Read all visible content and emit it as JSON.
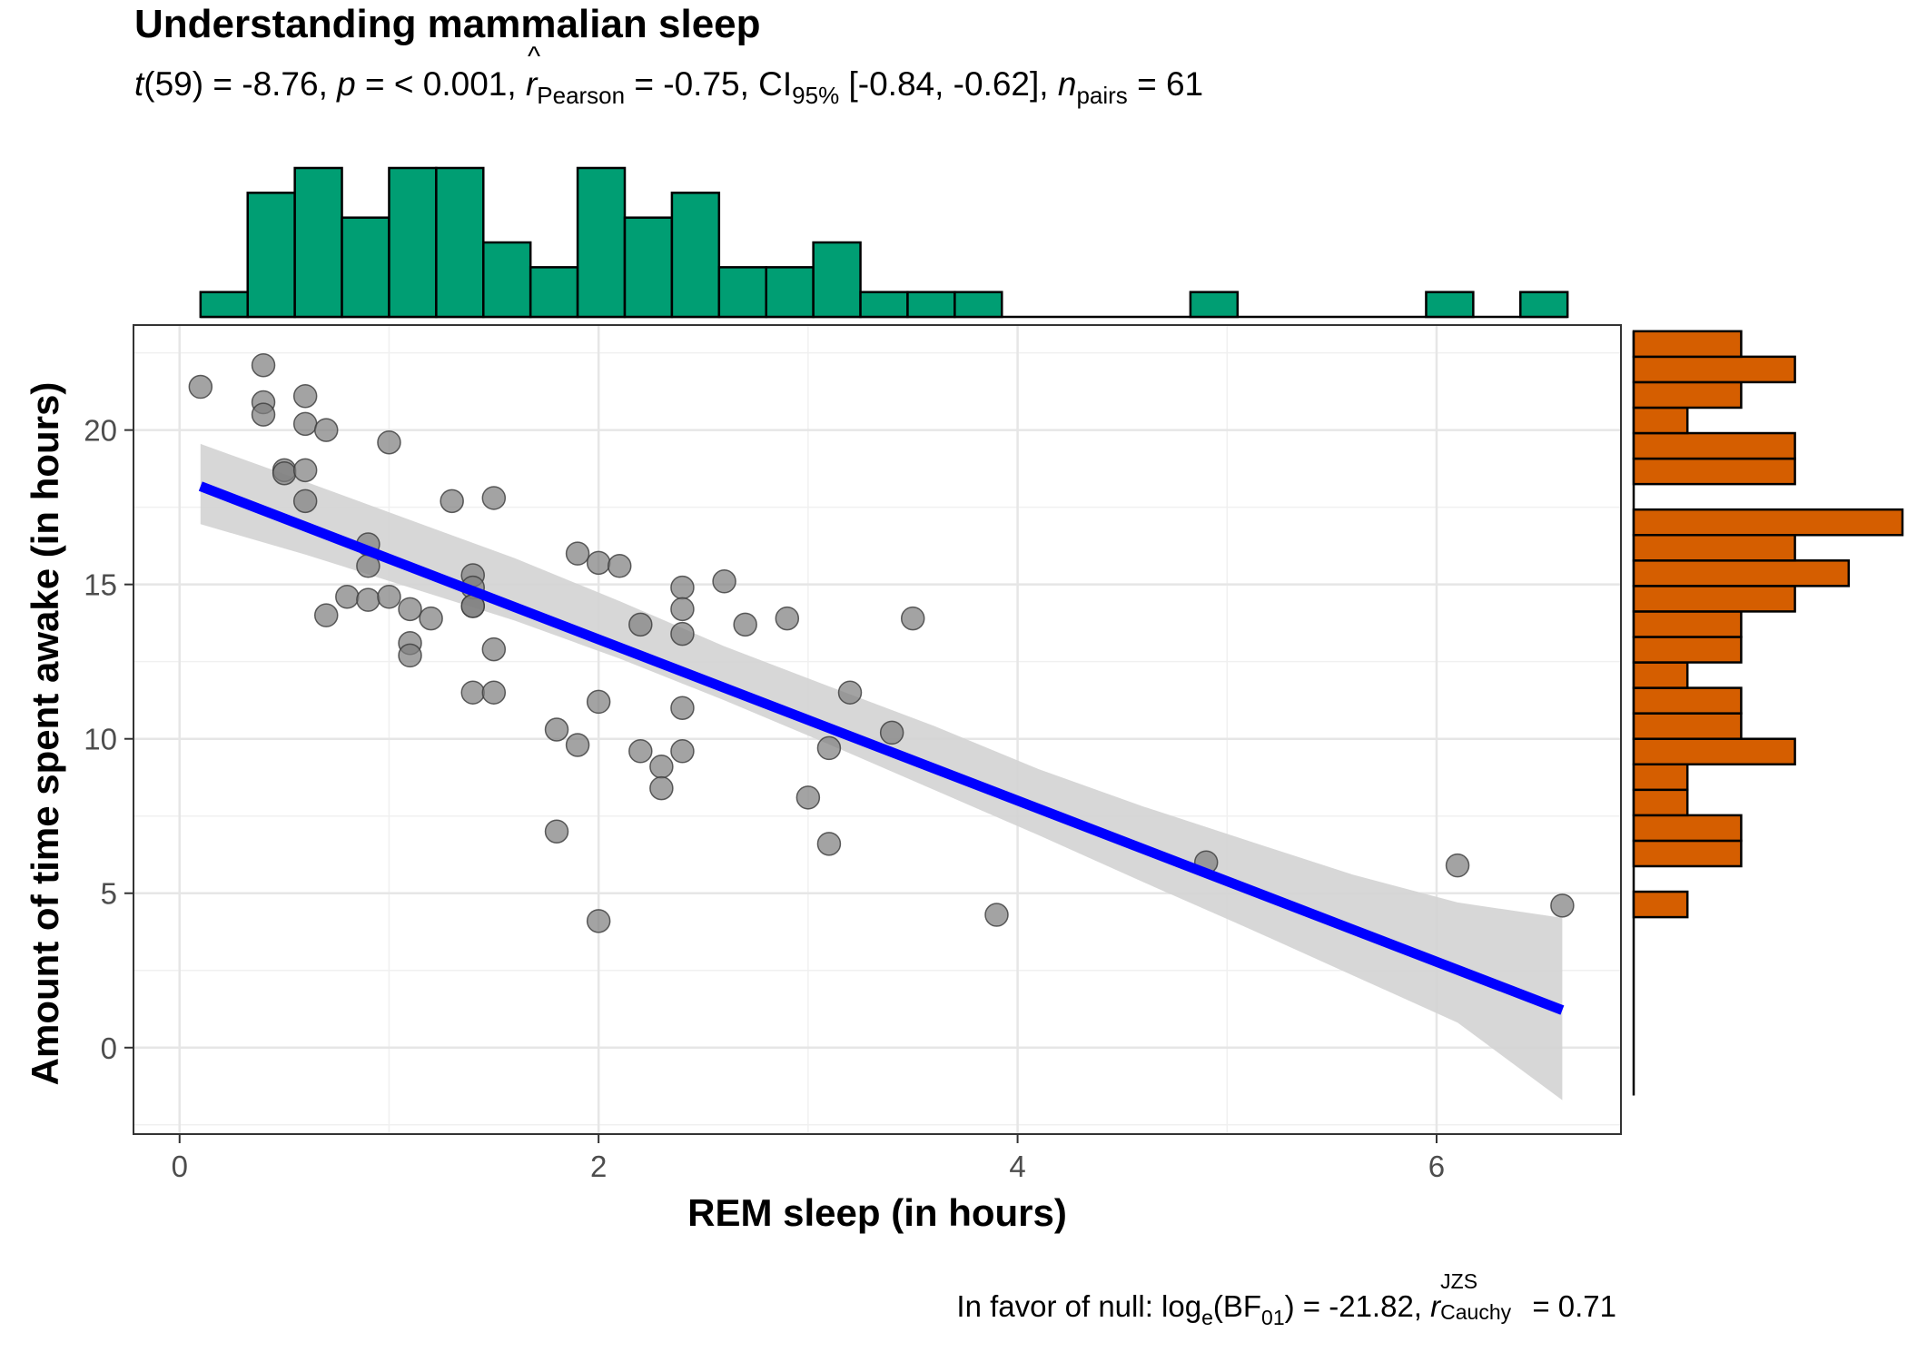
{
  "chart_data": {
    "type": "scatter",
    "title": "Understanding mammalian sleep",
    "subtitle": {
      "t_label": "t",
      "df": "(59) = -8.76, ",
      "p_label": "p",
      "p_text": " = < 0.001, ",
      "r_label": "r",
      "r_sub": "Pearson",
      "r_text": " = -0.75, CI",
      "ci_sub": "95%",
      "ci_text": " [-0.84, -0.62], ",
      "n_label": "n",
      "n_sub": "pairs",
      "n_text": " = 61"
    },
    "caption": {
      "prefix": "In favor of null: log",
      "log_sub": "e",
      "bf_text": "(BF",
      "bf_sub": "01",
      "mid": ") = -21.82, ",
      "r_label": "r",
      "r_sup": "JZS",
      "r_sub": "Cauchy",
      "suffix": " = 0.71"
    },
    "xlabel": "REM sleep (in hours)",
    "ylabel": "Amount of time spent awake (in hours)",
    "xlim": [
      -0.22,
      6.88
    ],
    "ylim": [
      -2.8,
      23.4
    ],
    "xticks": [
      0,
      2,
      4,
      6
    ],
    "yticks": [
      0,
      5,
      10,
      15,
      20
    ],
    "x": [
      0.1,
      0.4,
      0.4,
      0.4,
      0.5,
      0.5,
      0.6,
      0.6,
      0.6,
      0.6,
      0.7,
      0.7,
      0.8,
      0.9,
      0.9,
      0.9,
      1.0,
      1.0,
      1.1,
      1.1,
      1.1,
      1.2,
      1.3,
      1.4,
      1.4,
      1.4,
      1.4,
      1.4,
      1.5,
      1.5,
      1.5,
      1.8,
      1.8,
      1.9,
      1.9,
      2.0,
      2.0,
      2.0,
      2.1,
      2.2,
      2.2,
      2.3,
      2.3,
      2.4,
      2.4,
      2.4,
      2.4,
      2.4,
      2.6,
      2.7,
      2.9,
      3.0,
      3.1,
      3.1,
      3.2,
      3.4,
      3.5,
      3.9,
      4.9,
      6.1,
      6.6
    ],
    "y": [
      21.4,
      22.1,
      20.9,
      20.5,
      18.7,
      18.6,
      21.1,
      20.2,
      18.7,
      17.7,
      20.0,
      14.0,
      14.6,
      16.3,
      15.6,
      14.5,
      19.6,
      14.6,
      14.2,
      13.1,
      12.7,
      13.9,
      17.7,
      15.3,
      14.9,
      14.3,
      14.3,
      11.5,
      17.8,
      12.9,
      11.5,
      10.3,
      7.0,
      16.0,
      9.8,
      15.7,
      11.2,
      4.1,
      15.6,
      13.7,
      9.6,
      9.1,
      8.4,
      14.9,
      14.2,
      13.4,
      11.0,
      9.6,
      15.1,
      13.7,
      13.9,
      8.1,
      9.7,
      6.6,
      11.5,
      10.2,
      13.9,
      4.3,
      6.0,
      5.9,
      4.6
    ],
    "regression": {
      "intercept": 18.44,
      "slope": -2.61,
      "x_range": [
        0.1,
        6.6
      ],
      "color": "#0000ff"
    },
    "confidence_band": {
      "x": [
        0.1,
        0.6,
        1.1,
        1.6,
        2.1,
        2.6,
        3.1,
        3.6,
        4.1,
        4.6,
        5.1,
        5.6,
        6.1,
        6.6
      ],
      "lower": [
        16.95,
        15.97,
        14.9,
        13.83,
        12.6,
        11.25,
        9.82,
        8.35,
        6.88,
        5.36,
        3.87,
        2.34,
        0.81,
        -1.7
      ],
      "upper": [
        19.55,
        18.33,
        17.09,
        15.85,
        14.46,
        13.0,
        11.7,
        10.42,
        9.02,
        7.81,
        6.7,
        5.6,
        4.7,
        4.2
      ],
      "color": "#d3d3d3"
    },
    "point_color": "#808080",
    "x_histogram": {
      "bin_width": 0.225,
      "first_bin_start": 0.1,
      "counts": [
        1,
        5,
        6,
        4,
        6,
        6,
        3,
        2,
        6,
        4,
        5,
        2,
        2,
        3,
        1,
        1,
        1,
        0,
        0,
        0,
        0,
        1,
        0,
        0,
        0,
        0,
        1,
        0,
        1
      ],
      "color": "#009e73"
    },
    "y_histogram": {
      "bin_width": 0.825,
      "first_bin_start": -1.55,
      "counts": [
        0,
        0,
        0,
        0,
        0,
        0,
        0,
        1,
        0,
        2,
        2,
        1,
        1,
        3,
        2,
        2,
        1,
        2,
        2,
        3,
        4,
        3,
        5,
        0,
        3,
        3,
        1,
        2,
        3,
        2
      ],
      "color": "#d55e00"
    }
  }
}
